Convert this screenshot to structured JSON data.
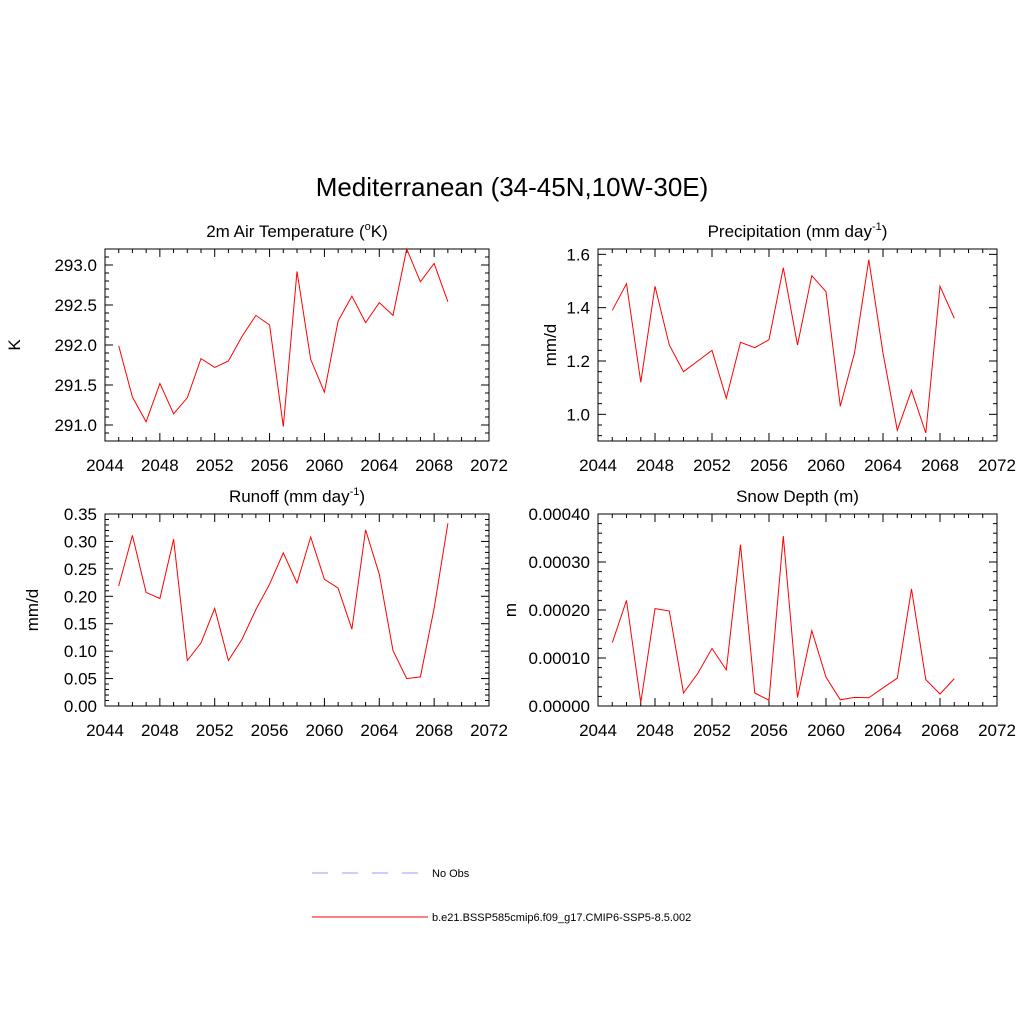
{
  "main_title": "Mediterranean (34-45N,10W-30E)",
  "series_color": "#ff0000",
  "obs_color": "#9999ff",
  "legend": [
    {
      "label": "No Obs",
      "style": "dashed",
      "color": "#9999ff"
    },
    {
      "label": "b.e21.BSSP585cmip6.f09_g17.CMIP6-SSP5-8.5.002",
      "style": "solid",
      "color": "#ff0000"
    }
  ],
  "chart_data": [
    {
      "type": "line",
      "title": "2m Air Temperature (",
      "title_sup": "o",
      "title_tail": "K)",
      "ylabel": "K",
      "xlim": [
        2044,
        2072
      ],
      "ylim": [
        290.8,
        293.2
      ],
      "xticks": [
        2044,
        2048,
        2052,
        2056,
        2060,
        2064,
        2068,
        2072
      ],
      "xtick_labels": [
        "2044",
        "2048",
        "2052",
        "2056",
        "2060",
        "2064",
        "2068",
        "2072"
      ],
      "yticks": [
        291.0,
        291.5,
        292.0,
        292.5,
        293.0
      ],
      "ytick_labels": [
        "291.0",
        "291.5",
        "292.0",
        "292.5",
        "293.0"
      ],
      "x": [
        2045,
        2046,
        2047,
        2048,
        2049,
        2050,
        2051,
        2052,
        2053,
        2054,
        2055,
        2056,
        2057,
        2058,
        2059,
        2060,
        2061,
        2062,
        2063,
        2064,
        2065,
        2066,
        2067,
        2068,
        2069
      ],
      "values": [
        291.99,
        291.35,
        291.04,
        291.52,
        291.14,
        291.34,
        291.83,
        291.72,
        291.8,
        292.11,
        292.37,
        292.25,
        290.98,
        292.92,
        291.82,
        291.41,
        292.3,
        292.61,
        292.28,
        292.53,
        292.37,
        293.2,
        292.79,
        293.02,
        292.54
      ]
    },
    {
      "type": "line",
      "title": "Precipitation (mm day",
      "title_sup": "-1",
      "title_tail": ")",
      "ylabel": "mm/d",
      "xlim": [
        2044,
        2072
      ],
      "ylim": [
        0.9,
        1.62
      ],
      "xticks": [
        2044,
        2048,
        2052,
        2056,
        2060,
        2064,
        2068,
        2072
      ],
      "xtick_labels": [
        "2044",
        "2048",
        "2052",
        "2056",
        "2060",
        "2064",
        "2068",
        "2072"
      ],
      "yticks": [
        1.0,
        1.2,
        1.4,
        1.6
      ],
      "ytick_labels": [
        "1.0",
        "1.2",
        "1.4",
        "1.6"
      ],
      "x": [
        2045,
        2046,
        2047,
        2048,
        2049,
        2050,
        2051,
        2052,
        2053,
        2054,
        2055,
        2056,
        2057,
        2058,
        2059,
        2060,
        2061,
        2062,
        2063,
        2064,
        2065,
        2066,
        2067,
        2068,
        2069
      ],
      "values": [
        1.39,
        1.49,
        1.12,
        1.48,
        1.26,
        1.16,
        1.2,
        1.24,
        1.06,
        1.27,
        1.25,
        1.28,
        1.55,
        1.26,
        1.52,
        1.46,
        1.03,
        1.23,
        1.58,
        1.23,
        0.94,
        1.09,
        0.93,
        1.48,
        1.36
      ]
    },
    {
      "type": "line",
      "title": "Runoff (mm day",
      "title_sup": "-1",
      "title_tail": ")",
      "ylabel": "mm/d",
      "xlim": [
        2044,
        2072
      ],
      "ylim": [
        0.0,
        0.35
      ],
      "xticks": [
        2044,
        2048,
        2052,
        2056,
        2060,
        2064,
        2068,
        2072
      ],
      "xtick_labels": [
        "2044",
        "2048",
        "2052",
        "2056",
        "2060",
        "2064",
        "2068",
        "2072"
      ],
      "yticks": [
        0.0,
        0.05,
        0.1,
        0.15,
        0.2,
        0.25,
        0.3,
        0.35
      ],
      "ytick_labels": [
        "0.00",
        "0.05",
        "0.10",
        "0.15",
        "0.20",
        "0.25",
        "0.30",
        "0.35"
      ],
      "x": [
        2045,
        2046,
        2047,
        2048,
        2049,
        2050,
        2051,
        2052,
        2053,
        2054,
        2055,
        2056,
        2057,
        2058,
        2059,
        2060,
        2061,
        2062,
        2063,
        2064,
        2065,
        2066,
        2067,
        2068,
        2069
      ],
      "values": [
        0.219,
        0.311,
        0.207,
        0.196,
        0.304,
        0.083,
        0.115,
        0.178,
        0.083,
        0.122,
        0.176,
        0.222,
        0.279,
        0.224,
        0.308,
        0.231,
        0.215,
        0.14,
        0.321,
        0.24,
        0.101,
        0.05,
        0.053,
        0.178,
        0.333
      ]
    },
    {
      "type": "line",
      "title": "Snow Depth (m)",
      "title_sup": "",
      "title_tail": "",
      "ylabel": "m",
      "xlim": [
        2044,
        2072
      ],
      "ylim": [
        0.0,
        0.0004
      ],
      "xticks": [
        2044,
        2048,
        2052,
        2056,
        2060,
        2064,
        2068,
        2072
      ],
      "xtick_labels": [
        "2044",
        "2048",
        "2052",
        "2056",
        "2060",
        "2064",
        "2068",
        "2072"
      ],
      "yticks": [
        0.0,
        0.0001,
        0.0002,
        0.0003,
        0.0004
      ],
      "ytick_labels": [
        "0.00000",
        "0.00010",
        "0.00020",
        "0.00030",
        "0.00040"
      ],
      "x": [
        2045,
        2046,
        2047,
        2048,
        2049,
        2050,
        2051,
        2052,
        2053,
        2054,
        2055,
        2056,
        2057,
        2058,
        2059,
        2060,
        2061,
        2062,
        2063,
        2064,
        2065,
        2066,
        2067,
        2068,
        2069
      ],
      "values": [
        0.000132,
        0.00022,
        7e-06,
        0.000203,
        0.000198,
        2.7e-05,
        6.8e-05,
        0.00012,
        7.5e-05,
        0.000336,
        2.7e-05,
        1.2e-05,
        0.000354,
        1.8e-05,
        0.000157,
        6e-05,
        1.3e-05,
        1.8e-05,
        1.7e-05,
        3.8e-05,
        5.8e-05,
        0.000244,
        5.5e-05,
        2.5e-05,
        5.7e-05
      ]
    }
  ]
}
